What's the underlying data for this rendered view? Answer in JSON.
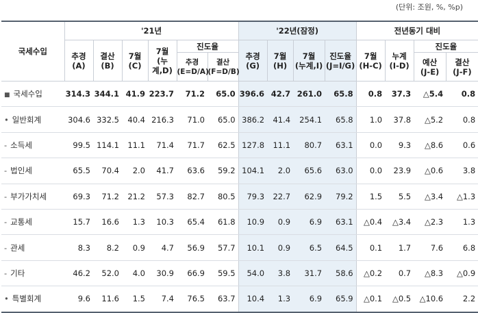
{
  "unit_note": "(단위: 조원, %, %p)",
  "headers": {
    "row_header": "국세수입",
    "group_21": "'21년",
    "group_22": "'22년(잠정)",
    "group_yoy": "전년동기 대비",
    "sub": {
      "a": "추경\n(A)",
      "b": "결산\n(B)",
      "c": "7월\n(C)",
      "d": "7월\n(누계,D)",
      "prog21": "진도율",
      "e": "추경\n(E=D/A)",
      "f": "결산\n(F=D/B)",
      "g": "추경\n(G)",
      "h": "7월\n(H)",
      "i": "7월\n(누계,I)",
      "j": "진도율\n(J=I/G)",
      "hc": "7월\n(H-C)",
      "id": "누계\n(I-D)",
      "progyoy": "진도율",
      "je": "예산\n(J-E)",
      "jf": "결산\n(J-F)"
    }
  },
  "rows": [
    {
      "bullet": "■",
      "label": "국세수입",
      "total": true,
      "values": [
        "314.3",
        "344.1",
        "41.9",
        "223.7",
        "71.2",
        "65.0",
        "396.6",
        "42.7",
        "261.0",
        "65.8",
        "0.8",
        "37.3",
        "△5.4",
        "0.8"
      ]
    },
    {
      "bullet": "•",
      "label": "일반회계",
      "total": false,
      "values": [
        "304.6",
        "332.5",
        "40.4",
        "216.3",
        "71.0",
        "65.0",
        "386.2",
        "41.4",
        "254.1",
        "65.8",
        "1.0",
        "37.8",
        "△5.2",
        "0.8"
      ]
    },
    {
      "bullet": "-",
      "label": "소득세",
      "total": false,
      "values": [
        "99.5",
        "114.1",
        "11.1",
        "71.4",
        "71.7",
        "62.5",
        "127.8",
        "11.1",
        "80.7",
        "63.1",
        "0.0",
        "9.3",
        "△8.6",
        "0.6"
      ]
    },
    {
      "bullet": "-",
      "label": "법인세",
      "total": false,
      "values": [
        "65.5",
        "70.4",
        "2.0",
        "41.7",
        "63.6",
        "59.2",
        "104.1",
        "2.0",
        "65.6",
        "63.0",
        "0.0",
        "23.9",
        "△0.6",
        "3.8"
      ]
    },
    {
      "bullet": "-",
      "label": "부가가치세",
      "total": false,
      "values": [
        "69.3",
        "71.2",
        "21.2",
        "57.3",
        "82.7",
        "80.5",
        "79.3",
        "22.7",
        "62.9",
        "79.2",
        "1.5",
        "5.5",
        "△3.4",
        "△1.3"
      ]
    },
    {
      "bullet": "-",
      "label": "교통세",
      "total": false,
      "values": [
        "15.7",
        "16.6",
        "1.3",
        "10.3",
        "65.4",
        "61.8",
        "10.9",
        "0.9",
        "6.9",
        "63.1",
        "△0.4",
        "△3.4",
        "△2.3",
        "1.3"
      ]
    },
    {
      "bullet": "-",
      "label": "관세",
      "total": false,
      "values": [
        "8.3",
        "8.2",
        "0.9",
        "4.7",
        "56.9",
        "57.7",
        "10.1",
        "0.9",
        "6.5",
        "64.5",
        "0.1",
        "1.7",
        "7.6",
        "6.8"
      ]
    },
    {
      "bullet": "-",
      "label": "기타",
      "total": false,
      "values": [
        "46.2",
        "52.0",
        "4.0",
        "30.9",
        "66.9",
        "59.5",
        "54.0",
        "3.8",
        "31.7",
        "58.6",
        "△0.2",
        "0.7",
        "△8.3",
        "△0.9"
      ]
    },
    {
      "bullet": "•",
      "label": "특별회계",
      "total": false,
      "values": [
        "9.6",
        "11.6",
        "1.5",
        "7.4",
        "76.5",
        "63.7",
        "10.4",
        "1.3",
        "6.9",
        "65.9",
        "△0.1",
        "△0.5",
        "△10.6",
        "2.2"
      ]
    }
  ],
  "colors": {
    "shaded": "#e8f0f7",
    "rule": "#55606e"
  }
}
